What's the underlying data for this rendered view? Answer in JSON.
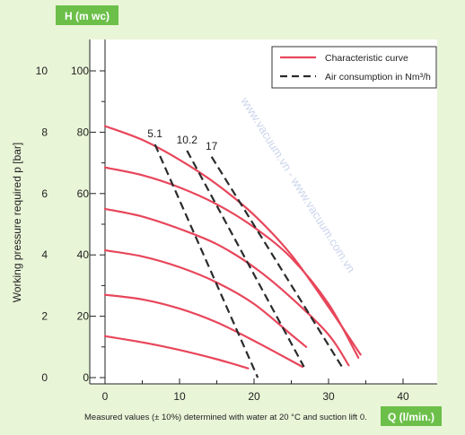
{
  "chart_data": {
    "type": "line",
    "x_title": "Q (l/min.)",
    "y_title_left": "H (m wc)",
    "y_title_outer": "Working pressure required p [bar]",
    "xlim": [
      0,
      45
    ],
    "ylim": [
      0,
      110
    ],
    "x_ticks": [
      "0",
      "10",
      "20",
      "30",
      "40"
    ],
    "x_tick_values": [
      0,
      10,
      20,
      30,
      40
    ],
    "y_ticks": [
      "0",
      "20",
      "40",
      "60",
      "80",
      "100"
    ],
    "y_tick_values": [
      0,
      20,
      40,
      60,
      80,
      100
    ],
    "bar_ticks": [
      "0",
      "2",
      "4",
      "6",
      "8",
      "10"
    ],
    "bar_tick_values": [
      0,
      20,
      40,
      60,
      80,
      100
    ],
    "grid": false,
    "legend": {
      "position": "top-right",
      "characteristic": "Characteristic curve",
      "air": "Air consumption in Nm³/h"
    },
    "characteristic_curves": [
      {
        "x": [
          0,
          5,
          10,
          15,
          19.2
        ],
        "y": [
          13.5,
          11.5,
          9,
          6,
          3
        ]
      },
      {
        "x": [
          0,
          5,
          10,
          15,
          20,
          26.5
        ],
        "y": [
          27,
          25.5,
          22.5,
          18,
          12,
          3.5
        ]
      },
      {
        "x": [
          0,
          5,
          10,
          15,
          20,
          25,
          27
        ],
        "y": [
          41.5,
          39.5,
          36,
          31,
          24,
          14,
          10
        ]
      },
      {
        "x": [
          0,
          5,
          10,
          15,
          20,
          25,
          30,
          32.7
        ],
        "y": [
          55,
          52.5,
          48.5,
          43.5,
          36,
          26,
          14,
          4
        ]
      },
      {
        "x": [
          0,
          5,
          10,
          15,
          20,
          25,
          30,
          34
        ],
        "y": [
          68.5,
          66,
          62,
          56.5,
          49,
          39,
          24,
          6.5
        ]
      },
      {
        "x": [
          0,
          5,
          10,
          15,
          20,
          25,
          30,
          34.3
        ],
        "y": [
          82,
          77.5,
          71,
          63,
          53,
          40,
          23,
          7.5
        ]
      }
    ],
    "air_lines": [
      {
        "label": "5.1",
        "x": [
          6.7,
          20.5
        ],
        "y": [
          76,
          0
        ]
      },
      {
        "label": "10.2",
        "x": [
          11,
          26.7
        ],
        "y": [
          74,
          3.5
        ]
      },
      {
        "label": "17",
        "x": [
          14.3,
          31.8
        ],
        "y": [
          72,
          3.5
        ]
      }
    ],
    "note": "Measured values (± 10%) determined with water at 20 °C and suction lift 0.",
    "watermark": "www.vacuum.vn - www.vacuum.com.vn",
    "colors": {
      "background": "#e9f5d7",
      "plot_background": "#ffffff",
      "characteristic": "#e8465b",
      "air": "#2b2b2b",
      "badge": "#6cc04a"
    }
  }
}
